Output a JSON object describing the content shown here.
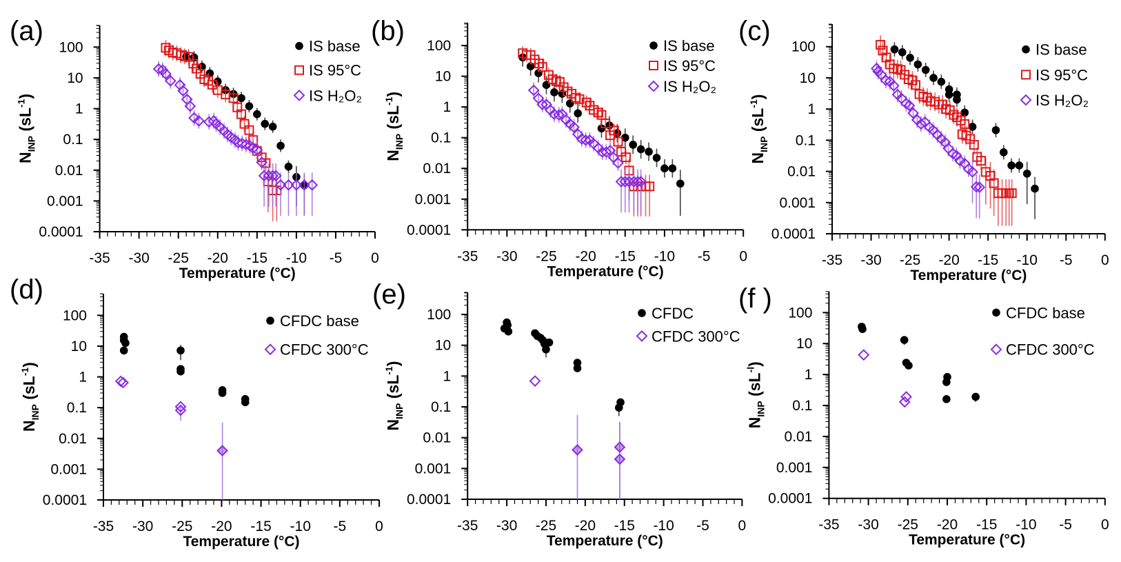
{
  "figure": {
    "colors": {
      "base": "#000000",
      "heated95": "#e0191b",
      "h2o2": "#8a2be2",
      "heated300": "#8a2be2"
    }
  },
  "chart_data": [
    {
      "type": "scatter",
      "label": "(a)",
      "xlabel": "Temperature (°C)",
      "ylabel": {
        "base": "N",
        "sub": "INP",
        "open": " (sL",
        "sup": "-1",
        "close": ")"
      },
      "xlim": [
        -35,
        0
      ],
      "ylim": [
        0.0001,
        500
      ],
      "yscale": "log",
      "grid": false,
      "legend": "top-right",
      "xticks": [
        "-35",
        "-30",
        "-25",
        "-20",
        "-15",
        "-10",
        "-5",
        "0"
      ],
      "yticks": [
        "100",
        "10",
        "1",
        "0.1",
        "0.01",
        "0.001",
        "0.0001"
      ],
      "series": [
        {
          "name": "IS base",
          "marker": "circle",
          "color": "#000000",
          "err_factor": 1.6,
          "x": [
            -24,
            -23,
            -22,
            -21,
            -20,
            -19,
            -18,
            -17,
            -16,
            -15,
            -14,
            -13,
            -12,
            -11,
            -10,
            -9
          ],
          "y": [
            50,
            46,
            23,
            14,
            7.6,
            4,
            3,
            2.2,
            1.2,
            0.66,
            0.32,
            0.26,
            0.062,
            0.013,
            0.006,
            0.0032
          ]
        },
        {
          "name": "IS 95°C",
          "marker": "square",
          "color": "#e0191b",
          "err_factor": 1.8,
          "x": [
            -26.6,
            -26.2,
            -25.7,
            -25.2,
            -24.7,
            -24.2,
            -23.7,
            -23.1,
            -22.7,
            -22.2,
            -21.7,
            -21.2,
            -20.7,
            -20.0,
            -19.0,
            -18.0,
            -17.5,
            -17.0,
            -16.6,
            -16.0,
            -15.5,
            -15.0,
            -14.4,
            -13.9,
            -13.6,
            -13.0,
            -12.5
          ],
          "y": [
            95,
            78,
            67,
            63,
            55,
            50,
            48,
            29,
            20,
            13.5,
            9,
            8,
            6,
            4,
            2.9,
            2.2,
            1.1,
            0.66,
            0.32,
            0.2,
            0.095,
            0.042,
            0.026,
            0.017,
            0.0043,
            0.0022,
            0.0022
          ]
        },
        {
          "name": "IS H₂O₂",
          "marker": "diamond",
          "color": "#8a2be2",
          "err_factor": 1.8,
          "x": [
            -27.5,
            -27.0,
            -26.6,
            -26.0,
            -24.8,
            -24.4,
            -23.9,
            -23.5,
            -23.0,
            -22.4,
            -21.1,
            -20.5,
            -20.2,
            -19.7,
            -19.2,
            -18.75,
            -18.3,
            -17.8,
            -17.4,
            -16.9,
            -16.4,
            -15.9,
            -15.5,
            -15.0,
            -14.4,
            -14.1,
            -13.5,
            -13.0,
            -12.6,
            -12.0,
            -11.0,
            -10.0,
            -9.0,
            -8.0
          ],
          "y": [
            19.5,
            18,
            13.5,
            8,
            5.9,
            3.8,
            2,
            1.2,
            0.5,
            0.4,
            0.37,
            0.4,
            0.32,
            0.25,
            0.19,
            0.145,
            0.117,
            0.095,
            0.078,
            0.074,
            0.068,
            0.062,
            0.052,
            0.046,
            0.018,
            0.0066,
            0.0066,
            0.0066,
            0.0066,
            0.0033,
            0.0033,
            0.0033,
            0.0033,
            0.0033
          ]
        }
      ]
    },
    {
      "type": "scatter",
      "label": "(b)",
      "xlabel": "Temperature (°C)",
      "ylabel": {
        "base": "N",
        "sub": "INP",
        "open": " (sL",
        "sup": "-1",
        "close": ")"
      },
      "xlim": [
        -35,
        0
      ],
      "ylim": [
        0.0001,
        500
      ],
      "yscale": "log",
      "grid": false,
      "legend": "top-right",
      "xticks": [
        "-35",
        "-30",
        "-25",
        "-20",
        "-15",
        "-10",
        "-5",
        "0"
      ],
      "yticks": [
        "100",
        "10",
        "1",
        "0.1",
        "0.01",
        "0.001",
        "0.0001"
      ],
      "series": [
        {
          "name": "IS base",
          "marker": "circle",
          "color": "#000000",
          "err_factor": 2.0,
          "x": [
            -28,
            -27,
            -26,
            -25,
            -24,
            -23,
            -22,
            -21,
            -18,
            -17,
            -16,
            -15,
            -14,
            -13,
            -12,
            -11,
            -10,
            -9,
            -8
          ],
          "y": [
            41,
            21,
            12.6,
            5.2,
            3,
            2.7,
            1.3,
            0.62,
            0.2,
            0.25,
            0.14,
            0.1,
            0.059,
            0.042,
            0.035,
            0.022,
            0.01,
            0.01,
            0.0032
          ]
        },
        {
          "name": "IS 95°C",
          "marker": "square",
          "color": "#e0191b",
          "err_factor": 1.7,
          "x": [
            -28,
            -27.5,
            -27,
            -26.5,
            -25.9,
            -25.5,
            -24.7,
            -24.2,
            -23.75,
            -23.3,
            -22.8,
            -22.3,
            -21.8,
            -21.25,
            -20.8,
            -19.9,
            -19.5,
            -19,
            -18.4,
            -18,
            -17.5,
            -16.9,
            -16.4,
            -15.9,
            -15.5,
            -14.9,
            -14.5,
            -13.9,
            -13.4,
            -13,
            -12.4,
            -11.9
          ],
          "y": [
            56,
            49,
            49,
            35,
            26,
            20,
            11,
            8,
            7,
            6.5,
            4.4,
            3.2,
            2.7,
            2,
            1.8,
            1.4,
            1.1,
            0.8,
            0.66,
            0.55,
            0.29,
            0.12,
            0.17,
            0.074,
            0.035,
            0.023,
            0.0085,
            0.0026,
            0.0026,
            0.0026,
            0.0026,
            0.0026
          ]
        },
        {
          "name": "IS H₂O₂",
          "marker": "diamond",
          "color": "#8a2be2",
          "err_factor": 1.8,
          "x": [
            -26.6,
            -26,
            -25.5,
            -25,
            -24.5,
            -24,
            -23.4,
            -23,
            -22.5,
            -22,
            -21.5,
            -21,
            -20.5,
            -20,
            -19.5,
            -19,
            -18.4,
            -17.9,
            -17.4,
            -16.9,
            -16.5,
            -15.9,
            -15.5,
            -15,
            -14.5,
            -13.9,
            -13.4,
            -13
          ],
          "y": [
            3.5,
            1.9,
            1.2,
            1.2,
            0.8,
            0.58,
            0.55,
            0.58,
            0.38,
            0.28,
            0.22,
            0.13,
            0.091,
            0.083,
            0.083,
            0.064,
            0.046,
            0.034,
            0.034,
            0.038,
            0.023,
            0.015,
            0.0037,
            0.0037,
            0.0037,
            0.0037,
            0.0037,
            0.0037
          ]
        }
      ]
    },
    {
      "type": "scatter",
      "label": "(c)",
      "xlabel": "Temperature (°C)",
      "ylabel": {
        "base": "N",
        "sub": "INP",
        "open": " (sL",
        "sup": "-1",
        "close": ")"
      },
      "xlim": [
        -35,
        0
      ],
      "ylim": [
        0.0001,
        500
      ],
      "yscale": "log",
      "grid": false,
      "legend": "top-right",
      "xticks": [
        "-35",
        "-30",
        "-25",
        "-20",
        "-15",
        "-10",
        "-5",
        "0"
      ],
      "yticks": [
        "100",
        "10",
        "1",
        "0.1",
        "0.01",
        "0.001",
        "0.0001"
      ],
      "series": [
        {
          "name": "IS base",
          "marker": "circle",
          "color": "#000000",
          "err_factor": 1.7,
          "x": [
            -27,
            -26,
            -25,
            -24,
            -23,
            -22,
            -21,
            -20,
            -20,
            -19,
            -19,
            -18,
            -17,
            -14,
            -13,
            -12,
            -11,
            -10,
            -9
          ],
          "y": [
            82,
            66,
            44,
            27,
            18,
            10,
            7.5,
            4.3,
            2.9,
            2.9,
            2.0,
            0.77,
            0.27,
            0.21,
            0.041,
            0.0155,
            0.0155,
            0.0085,
            0.0028
          ]
        },
        {
          "name": "IS 95°C",
          "marker": "square",
          "color": "#e0191b",
          "err_factor": 2.0,
          "x": [
            -28.8,
            -28.5,
            -28.05,
            -27.6,
            -27.1,
            -26.6,
            -26.2,
            -25.7,
            -25.2,
            -24.7,
            -24.3,
            -23.8,
            -23.3,
            -22.8,
            -22.4,
            -21.8,
            -21.3,
            -20.85,
            -20.4,
            -19.9,
            -19.4,
            -19,
            -18.5,
            -18,
            -18.3,
            -17.8,
            -17.3,
            -16.8,
            -16.4,
            -15.9,
            -15.3,
            -14.7,
            -14.25,
            -13.7,
            -13.2,
            -12.7,
            -12.3,
            -11.95
          ],
          "y": [
            115,
            75,
            45,
            27,
            20,
            19,
            18,
            12.6,
            9,
            8.3,
            5.9,
            3,
            2.5,
            2.3,
            1.8,
            1.7,
            1.4,
            1.4,
            1.0,
            0.92,
            0.65,
            0.55,
            0.43,
            0.33,
            0.155,
            0.14,
            0.11,
            0.071,
            0.029,
            0.022,
            0.0096,
            0.0072,
            0.0042,
            0.002,
            0.002,
            0.002,
            0.002,
            0.002
          ]
        },
        {
          "name": "IS H₂O₂",
          "marker": "diamond",
          "color": "#8a2be2",
          "err_factor": 1.8,
          "x": [
            -29.3,
            -29.1,
            -28.7,
            -28.1,
            -27.6,
            -27.1,
            -26.6,
            -26.1,
            -25.5,
            -25.1,
            -24.6,
            -24.1,
            -23.6,
            -23.1,
            -22.5,
            -22.05,
            -21.5,
            -21,
            -20.5,
            -20.1,
            -19.5,
            -19.05,
            -18.6,
            -18,
            -17.5,
            -17,
            -16.5,
            -16.1
          ],
          "y": [
            20,
            16,
            12.6,
            8.3,
            7.6,
            5.6,
            2.9,
            2.2,
            1.5,
            1.3,
            0.74,
            0.45,
            0.33,
            0.38,
            0.26,
            0.21,
            0.15,
            0.11,
            0.085,
            0.055,
            0.037,
            0.032,
            0.022,
            0.018,
            0.012,
            0.0096,
            0.0032,
            0.0031
          ]
        }
      ]
    },
    {
      "type": "scatter",
      "label": "(d)",
      "xlabel": "Temperature (°C)",
      "ylabel": {
        "base": "N",
        "sub": "INP",
        "open": " (sL",
        "sup": "-1",
        "close": ")"
      },
      "xlim": [
        -35,
        0
      ],
      "ylim": [
        0.0001,
        500
      ],
      "yscale": "log",
      "grid": false,
      "legend": "top-right",
      "xticks": [
        "-35",
        "-30",
        "-25",
        "-20",
        "-15",
        "-10",
        "-5",
        "0"
      ],
      "yticks": [
        "100",
        "10",
        "1",
        "0.1",
        "0.01",
        "0.001",
        "0.0001"
      ],
      "series": [
        {
          "name": "CFDC base",
          "marker": "circle",
          "color": "#000000",
          "err_factor": 1.1,
          "x": [
            -32.4,
            -32.4,
            -32.2,
            -32.4,
            -25.2,
            -25.2,
            -25.2,
            -19.9,
            -19.9,
            -17,
            -17
          ],
          "y": [
            20,
            15.5,
            12.6,
            7.2,
            7.2,
            1.8,
            1.5,
            0.37,
            0.3,
            0.19,
            0.15
          ],
          "err": [
            null,
            null,
            null,
            null,
            [
              3.5,
              11
            ],
            null,
            null,
            null,
            null,
            null,
            null
          ]
        },
        {
          "name": "CFDC 300°C",
          "marker": "diamond",
          "color": "#8a2be2",
          "err_factor": 1.0,
          "x": [
            -32.8,
            -32.5,
            -25.2,
            -25.2,
            -19.9
          ],
          "y": [
            0.72,
            0.65,
            0.107,
            0.082,
            0.004
          ],
          "filled": [
            false,
            false,
            false,
            false,
            true
          ],
          "err": [
            null,
            null,
            null,
            [
              0.037,
              0.12
            ],
            [
              1e-05,
              0.033
            ]
          ]
        }
      ]
    },
    {
      "type": "scatter",
      "label": "(e)",
      "xlabel": "Temperature (°C)",
      "ylabel": {
        "base": "N",
        "sub": "INP",
        "open": " (sL",
        "sup": "-1",
        "close": ")"
      },
      "xlim": [
        -35,
        0
      ],
      "ylim": [
        0.0001,
        500
      ],
      "yscale": "log",
      "grid": false,
      "legend": "top-right",
      "xticks": [
        "-35",
        "-30",
        "-25",
        "-20",
        "-15",
        "-10",
        "-5",
        "0"
      ],
      "yticks": [
        "100",
        "10",
        "1",
        "0.1",
        "0.01",
        "0.001",
        "0.0001"
      ],
      "series": [
        {
          "name": "CFDC",
          "marker": "circle",
          "color": "#000000",
          "err_factor": 1.1,
          "x": [
            -30.3,
            -30.0,
            -29.9,
            -29.8,
            -26.4,
            -26.1,
            -25.7,
            -25.4,
            -25.2,
            -24.6,
            -25.0,
            -21.0,
            -21.0,
            -15.5,
            -15.7
          ],
          "y": [
            35,
            55,
            45,
            28,
            24.5,
            20,
            17.4,
            14.5,
            11.2,
            12.3,
            7.3,
            2.7,
            1.8,
            0.14,
            0.094
          ],
          "err": [
            null,
            null,
            null,
            null,
            null,
            null,
            null,
            null,
            null,
            null,
            [
              4,
              10
            ],
            null,
            null,
            null,
            [
              0.05,
              0.12
            ]
          ]
        },
        {
          "name": "CFDC 300°C",
          "marker": "diamond",
          "color": "#8a2be2",
          "err_factor": 1.0,
          "x": [
            -26.4,
            -21.0,
            -15.6,
            -15.6
          ],
          "y": [
            0.69,
            0.004,
            0.0049,
            0.002
          ],
          "filled": [
            false,
            true,
            true,
            true
          ],
          "err": [
            null,
            [
              1e-05,
              0.055
            ],
            [
              1e-05,
              0.032
            ],
            [
              1e-05,
              0.032
            ]
          ]
        }
      ]
    },
    {
      "type": "scatter",
      "label": "(f )",
      "xlabel": "Temperature (°C)",
      "ylabel": {
        "base": "N",
        "sub": "INP",
        "open": " (sL",
        "sup": "-l",
        "close": ")"
      },
      "xlim": [
        -35,
        0
      ],
      "ylim": [
        0.0001,
        500
      ],
      "yscale": "log",
      "grid": false,
      "legend": "top-right",
      "xticks": [
        "-35",
        "-30",
        "-25",
        "-20",
        "-15",
        "-10",
        "-5",
        "0"
      ],
      "yticks": [
        "100",
        "10",
        "1",
        "0.1",
        "0.01",
        "0.001",
        "0.0001"
      ],
      "series": [
        {
          "name": "CFDC base",
          "marker": "circle",
          "color": "#000000",
          "err_factor": 1.1,
          "x": [
            -30.85,
            -30.75,
            -25.45,
            -25.2,
            -24.9,
            -20,
            -20.1,
            -20.1,
            -16.4
          ],
          "y": [
            35,
            29.5,
            13,
            2.4,
            1.95,
            0.83,
            0.57,
            0.16,
            0.19
          ],
          "err": [
            null,
            null,
            [
              9,
              17
            ],
            null,
            null,
            null,
            null,
            null,
            [
              0.13,
              0.25
            ]
          ]
        },
        {
          "name": "CFDC 300°C",
          "marker": "diamond",
          "color": "#8a2be2",
          "err_factor": 1.0,
          "x": [
            -30.6,
            -25.2,
            -25.4
          ],
          "y": [
            4.3,
            0.19,
            0.13
          ]
        }
      ]
    }
  ]
}
